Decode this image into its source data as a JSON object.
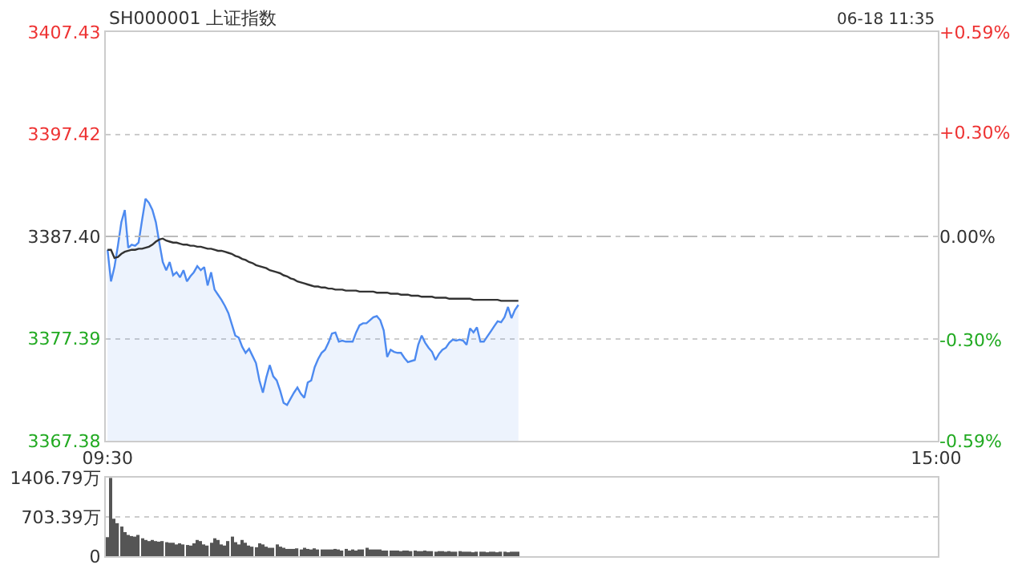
{
  "chart_data": [
    {
      "type": "line",
      "title": "SH000001 上证指数",
      "annotations": [
        "06-18 11:35"
      ],
      "categories": [
        "09:30",
        null,
        null,
        null,
        null,
        null,
        null,
        null,
        null,
        null,
        null,
        null,
        null,
        null,
        null,
        null,
        null,
        null,
        null,
        null,
        null,
        null,
        null,
        null,
        null,
        null,
        null,
        null,
        null,
        null,
        null,
        null,
        null,
        null,
        null,
        null,
        null,
        null,
        null,
        null,
        null,
        null,
        null,
        null,
        null,
        null,
        null,
        null,
        null,
        null,
        null,
        null,
        null,
        null,
        null,
        null,
        null,
        null,
        null,
        null,
        null,
        null,
        null,
        null,
        null,
        null,
        null,
        null,
        null,
        null,
        null,
        null,
        null,
        null,
        null,
        null,
        null,
        null,
        null,
        null,
        null,
        null,
        null,
        null,
        null,
        null,
        null,
        null,
        null,
        null,
        null,
        null,
        null,
        null,
        null,
        null,
        null,
        null,
        null,
        null,
        null,
        null,
        null,
        null,
        null,
        null,
        null,
        null,
        null,
        null,
        null,
        null,
        null,
        null,
        null,
        null,
        null,
        null,
        null,
        null,
        null,
        null,
        null,
        null,
        null,
        null,
        null,
        null,
        null,
        null,
        null,
        null,
        null,
        null,
        null,
        null,
        null,
        null,
        null,
        null,
        null,
        null,
        null,
        null,
        null,
        null,
        null,
        null,
        null,
        null,
        null,
        null,
        null,
        null,
        null,
        null,
        null,
        null,
        null,
        null,
        null,
        null,
        null,
        null,
        null,
        null,
        null,
        null,
        null,
        null,
        null,
        null,
        null,
        null,
        null,
        null,
        null,
        null,
        null,
        null,
        null,
        null,
        null,
        null,
        null,
        null,
        null,
        null,
        null,
        null,
        null,
        null,
        null,
        null,
        null,
        null,
        null,
        null,
        null,
        null,
        null,
        null,
        null,
        null,
        null,
        null,
        null,
        null,
        null,
        null,
        null,
        null,
        null,
        null,
        null,
        null,
        null,
        null,
        null,
        null,
        null,
        null,
        null,
        null,
        null,
        null,
        null,
        null,
        null,
        null,
        null,
        null,
        null,
        null,
        null,
        null,
        null,
        null,
        null,
        null,
        "15:00"
      ],
      "ylim": [
        3367.38,
        3407.43
      ],
      "yticks": [
        {
          "value": 3367.38,
          "label": "3367.38"
        },
        {
          "value": 3377.39,
          "label": "3377.39"
        },
        {
          "value": 3387.4,
          "label": "3387.40"
        },
        {
          "value": 3397.42,
          "label": "3397.42"
        },
        {
          "value": 3407.43,
          "label": "3407.43"
        }
      ],
      "y2lim": [
        -0.59,
        0.59
      ],
      "y2ticks": [
        {
          "value": -0.59,
          "label": "-0.59%"
        },
        {
          "value": -0.3,
          "label": "-0.30%"
        },
        {
          "value": 0,
          "label": "0.00%"
        },
        {
          "value": 0.3,
          "label": "+0.30%"
        },
        {
          "value": 0.59,
          "label": "+0.59%"
        }
      ],
      "grid": "y",
      "ref_lines": [
        {
          "axis": "y",
          "value": 3387.4,
          "color": "#bbbbbb",
          "line_style": "dashed"
        }
      ],
      "series": [
        {
          "type": "area",
          "color": "#4d8af0",
          "values": [
            3386.1,
            3383.0,
            3384.4,
            3386.5,
            3388.8,
            3390.0,
            3386.3,
            3386.6,
            3386.5,
            3386.8,
            3389.0,
            3391.1,
            3390.7,
            3390.0,
            3388.8,
            3386.8,
            3384.9,
            3384.1,
            3384.9,
            3383.6,
            3383.9,
            3383.4,
            3384.1,
            3383.0,
            3383.5,
            3383.9,
            3384.5,
            3384.1,
            3384.4,
            3382.6,
            3383.9,
            3382.2,
            3381.7,
            3381.2,
            3380.6,
            3379.9,
            3378.8,
            3377.7,
            3377.5,
            3376.6,
            3376.0,
            3376.4,
            3375.7,
            3375.0,
            3373.3,
            3372.1,
            3373.6,
            3374.8,
            3373.7,
            3373.3,
            3372.3,
            3371.1,
            3370.9,
            3371.5,
            3372.1,
            3372.6,
            3372.0,
            3371.6,
            3373.1,
            3373.3,
            3374.6,
            3375.4,
            3376.0,
            3376.3,
            3377.0,
            3377.9,
            3378.0,
            3377.1,
            3377.2,
            3377.1,
            3377.1,
            3377.1,
            3378.0,
            3378.7,
            3378.9,
            3378.9,
            3379.2,
            3379.5,
            3379.6,
            3379.2,
            3378.2,
            3375.6,
            3376.3,
            3376.1,
            3376.0,
            3376.0,
            3375.5,
            3375.1,
            3375.2,
            3375.3,
            3376.8,
            3377.7,
            3377.0,
            3376.5,
            3376.1,
            3375.3,
            3375.9,
            3376.3,
            3376.5,
            3377.0,
            3377.3,
            3377.2,
            3377.3,
            3377.2,
            3376.8,
            3378.4,
            3378.0,
            3378.5,
            3377.1,
            3377.1,
            3377.6,
            3378.1,
            3378.6,
            3379.1,
            3379.0,
            3379.5,
            3380.5,
            3379.4,
            3380.2,
            3380.7,
            null,
            null,
            null,
            null,
            null,
            null,
            null,
            null,
            null,
            null,
            null,
            null,
            null,
            null,
            null,
            null,
            null,
            null,
            null,
            null,
            null,
            null,
            null,
            null,
            null,
            null,
            null,
            null,
            null,
            null,
            null,
            null,
            null,
            null,
            null,
            null,
            null,
            null,
            null,
            null,
            null,
            null,
            null,
            null,
            null,
            null,
            null,
            null,
            null,
            null,
            null,
            null,
            null,
            null,
            null,
            null,
            null,
            null,
            null,
            null,
            null,
            null,
            null,
            null,
            null,
            null,
            null,
            null,
            null,
            null,
            null,
            null,
            null,
            null,
            null,
            null,
            null,
            null,
            null,
            null,
            null,
            null,
            null,
            null,
            null,
            null,
            null,
            null,
            null,
            null,
            null,
            null,
            null,
            null,
            null,
            null,
            null,
            null,
            null,
            null,
            null,
            null,
            null,
            null,
            null,
            null,
            null,
            null,
            null,
            null,
            null,
            null,
            null,
            null,
            null,
            null,
            null,
            null,
            null,
            null,
            null
          ]
        },
        {
          "type": "line",
          "color": "#333333",
          "values": [
            3386.1,
            3386.1,
            3385.3,
            3385.4,
            3385.7,
            3385.9,
            3386.0,
            3386.1,
            3386.1,
            3386.2,
            3386.2,
            3386.3,
            3386.4,
            3386.6,
            3386.9,
            3387.1,
            3387.2,
            3387.0,
            3386.9,
            3386.8,
            3386.8,
            3386.7,
            3386.6,
            3386.6,
            3386.5,
            3386.5,
            3386.4,
            3386.4,
            3386.3,
            3386.2,
            3386.2,
            3386.1,
            3386.0,
            3386.0,
            3385.9,
            3385.8,
            3385.7,
            3385.5,
            3385.4,
            3385.2,
            3385.1,
            3384.9,
            3384.8,
            3384.6,
            3384.5,
            3384.4,
            3384.3,
            3384.1,
            3384.0,
            3383.9,
            3383.8,
            3383.6,
            3383.5,
            3383.3,
            3383.2,
            3383.0,
            3382.9,
            3382.8,
            3382.7,
            3382.6,
            3382.5,
            3382.5,
            3382.4,
            3382.4,
            3382.3,
            3382.3,
            3382.2,
            3382.2,
            3382.2,
            3382.1,
            3382.1,
            3382.1,
            3382.1,
            3382.0,
            3382.0,
            3382.0,
            3382.0,
            3382.0,
            3381.9,
            3381.9,
            3381.9,
            3381.9,
            3381.8,
            3381.8,
            3381.8,
            3381.7,
            3381.7,
            3381.7,
            3381.6,
            3381.6,
            3381.6,
            3381.5,
            3381.5,
            3381.5,
            3381.5,
            3381.4,
            3381.4,
            3381.4,
            3381.4,
            3381.3,
            3381.3,
            3381.3,
            3381.3,
            3381.3,
            3381.3,
            3381.3,
            3381.2,
            3381.2,
            3381.2,
            3381.2,
            3381.2,
            3381.2,
            3381.2,
            3381.2,
            3381.1,
            3381.1,
            3381.1,
            3381.1,
            3381.1,
            3381.1,
            null,
            null,
            null,
            null,
            null,
            null,
            null,
            null,
            null,
            null,
            null,
            null,
            null,
            null,
            null,
            null,
            null,
            null,
            null,
            null,
            null,
            null,
            null,
            null,
            null,
            null,
            null,
            null,
            null,
            null,
            null,
            null,
            null,
            null,
            null,
            null,
            null,
            null,
            null,
            null,
            null,
            null,
            null,
            null,
            null,
            null,
            null,
            null,
            null,
            null,
            null,
            null,
            null,
            null,
            null,
            null,
            null,
            null,
            null,
            null,
            null,
            null,
            null,
            null,
            null,
            null,
            null,
            null,
            null,
            null,
            null,
            null,
            null,
            null,
            null,
            null,
            null,
            null,
            null,
            null,
            null,
            null,
            null,
            null,
            null,
            null,
            null,
            null,
            null,
            null,
            null,
            null,
            null,
            null,
            null,
            null,
            null,
            null,
            null,
            null,
            null,
            null,
            null,
            null,
            null,
            null,
            null,
            null,
            null,
            null,
            null,
            null,
            null,
            null,
            null,
            null,
            null,
            null,
            null,
            null,
            null
          ]
        }
      ]
    },
    {
      "type": "bar",
      "tick_labels": "y",
      "grid": "y",
      "ylim": [
        0,
        1406.79
      ],
      "yticks": [
        {
          "value": 0,
          "label": "0"
        },
        {
          "value": 703.39,
          "label": "703.39万"
        },
        {
          "value": 1406.79,
          "label": "1406.79万"
        }
      ],
      "series": [
        {
          "color": "#555555",
          "values": [
            340,
            1400,
            670,
            590,
            530,
            430,
            380,
            360,
            350,
            380,
            320,
            290,
            270,
            290,
            270,
            260,
            270,
            250,
            240,
            240,
            210,
            230,
            210,
            200,
            190,
            230,
            290,
            270,
            210,
            190,
            240,
            320,
            290,
            210,
            190,
            270,
            350,
            250,
            210,
            290,
            240,
            190,
            170,
            160,
            230,
            210,
            170,
            150,
            150,
            210,
            170,
            150,
            130,
            130,
            130,
            140,
            120,
            150,
            130,
            120,
            140,
            120,
            120,
            120,
            120,
            120,
            130,
            120,
            100,
            130,
            100,
            120,
            100,
            120,
            120,
            150,
            120,
            120,
            120,
            120,
            100,
            100,
            100,
            100,
            100,
            90,
            100,
            100,
            90,
            100,
            90,
            90,
            100,
            90,
            90,
            80,
            90,
            90,
            80,
            90,
            80,
            80,
            90,
            80,
            80,
            80,
            70,
            80,
            80,
            80,
            70,
            80,
            80,
            70,
            80,
            80,
            70,
            80,
            80,
            80,
            null,
            null,
            null,
            null,
            null,
            null,
            null,
            null,
            null,
            null,
            null,
            null,
            null,
            null,
            null,
            null,
            null,
            null,
            null,
            null,
            null,
            null,
            null,
            null,
            null,
            null,
            null,
            null,
            null,
            null,
            null,
            null,
            null,
            null,
            null,
            null,
            null,
            null,
            null,
            null,
            null,
            null,
            null,
            null,
            null,
            null,
            null,
            null,
            null,
            null,
            null,
            null,
            null,
            null,
            null,
            null,
            null,
            null,
            null,
            null,
            null,
            null,
            null,
            null,
            null,
            null,
            null,
            null,
            null,
            null,
            null,
            null,
            null,
            null,
            null,
            null,
            null,
            null,
            null,
            null,
            null,
            null,
            null,
            null,
            null,
            null,
            null,
            null,
            null,
            null,
            null,
            null,
            null,
            null,
            null,
            null,
            null,
            null,
            null,
            null,
            null,
            null,
            null,
            null,
            null,
            null,
            null,
            null,
            null,
            null,
            null,
            null,
            null,
            null,
            null,
            null,
            null,
            null,
            null,
            null,
            null
          ]
        }
      ]
    }
  ]
}
